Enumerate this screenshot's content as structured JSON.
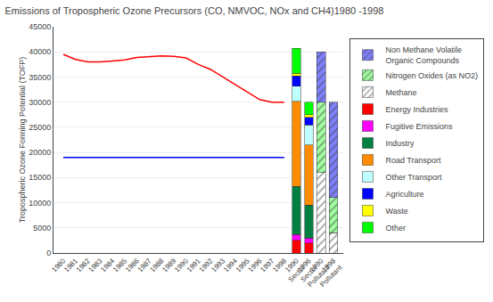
{
  "chart_data": {
    "type": "bar",
    "title": "Emissions of Tropospheric Ozone Precursors (CO, NMVOC, NOx and CH4)1980 -1998",
    "ylabel": "Tropospheric Ozone Forming Potential (TOFP)",
    "categories": [
      "1980",
      "1981",
      "1982",
      "1983",
      "1984",
      "1985",
      "1986",
      "1987",
      "1988",
      "1989",
      "1990",
      "1991",
      "1992",
      "1993",
      "1994",
      "1995",
      "1996",
      "1997",
      "1998",
      "1990\nSector",
      "1996\nSector",
      "1990\nPollutant",
      "1998\nPollutant"
    ],
    "series": [
      {
        "type": "line",
        "color": "red",
        "values": [
          39500,
          38500,
          38000,
          38000,
          38200,
          38400,
          38900,
          39000,
          39200,
          39100,
          38800,
          37500,
          36500,
          35000,
          33500,
          32000,
          30500,
          30000,
          30000,
          null,
          null,
          null,
          null
        ]
      },
      {
        "type": "line",
        "color": "blue",
        "values": [
          19000,
          19000,
          19000,
          19000,
          19000,
          19000,
          19000,
          19000,
          19000,
          19000,
          19000,
          19000,
          19000,
          19000,
          19000,
          19000,
          19000,
          19000,
          19000,
          null,
          null,
          null,
          null
        ]
      },
      {
        "name": "Energy Industries",
        "color": "#ff0000",
        "values": [
          null,
          null,
          null,
          null,
          null,
          null,
          null,
          null,
          null,
          null,
          null,
          null,
          null,
          null,
          null,
          null,
          null,
          null,
          null,
          2500,
          2000,
          null,
          null
        ]
      },
      {
        "name": "Fugitive Emissions",
        "color": "#ff00ff",
        "values": [
          null,
          null,
          null,
          null,
          null,
          null,
          null,
          null,
          null,
          null,
          null,
          null,
          null,
          null,
          null,
          null,
          null,
          null,
          null,
          1200,
          1000,
          null,
          null
        ]
      },
      {
        "name": "Industry",
        "color": "#008040",
        "values": [
          null,
          null,
          null,
          null,
          null,
          null,
          null,
          null,
          null,
          null,
          null,
          null,
          null,
          null,
          null,
          null,
          null,
          null,
          null,
          9500,
          6500,
          null,
          null
        ]
      },
      {
        "name": "Road Transport",
        "color": "#ff8c00",
        "values": [
          null,
          null,
          null,
          null,
          null,
          null,
          null,
          null,
          null,
          null,
          null,
          null,
          null,
          null,
          null,
          null,
          null,
          null,
          null,
          17000,
          12000,
          null,
          null
        ]
      },
      {
        "name": "Other Transport",
        "color": "#c0ffff",
        "values": [
          null,
          null,
          null,
          null,
          null,
          null,
          null,
          null,
          null,
          null,
          null,
          null,
          null,
          null,
          null,
          null,
          null,
          null,
          null,
          3000,
          4000,
          null,
          null
        ]
      },
      {
        "name": "Agriculture",
        "color": "#0000ff",
        "values": [
          null,
          null,
          null,
          null,
          null,
          null,
          null,
          null,
          null,
          null,
          null,
          null,
          null,
          null,
          null,
          null,
          null,
          null,
          null,
          2000,
          1500,
          null,
          null
        ]
      },
      {
        "name": "Waste",
        "color": "#ffff00",
        "values": [
          null,
          null,
          null,
          null,
          null,
          null,
          null,
          null,
          null,
          null,
          null,
          null,
          null,
          null,
          null,
          null,
          null,
          null,
          null,
          500,
          500,
          null,
          null
        ]
      },
      {
        "name": "Other",
        "color": "#00ff00",
        "values": [
          null,
          null,
          null,
          null,
          null,
          null,
          null,
          null,
          null,
          null,
          null,
          null,
          null,
          null,
          null,
          null,
          null,
          null,
          null,
          5000,
          2500,
          null,
          null
        ]
      },
      {
        "name": "Methane",
        "color": "#ffffff",
        "marker": "hatch",
        "values": [
          null,
          null,
          null,
          null,
          null,
          null,
          null,
          null,
          null,
          null,
          null,
          null,
          null,
          null,
          null,
          null,
          null,
          null,
          null,
          null,
          null,
          16000,
          4000
        ]
      },
      {
        "name": "Nitrogen Oxides (as NO2)",
        "color": "#a0ffa0",
        "marker": "hatch",
        "values": [
          null,
          null,
          null,
          null,
          null,
          null,
          null,
          null,
          null,
          null,
          null,
          null,
          null,
          null,
          null,
          null,
          null,
          null,
          null,
          null,
          null,
          14000,
          7000
        ]
      },
      {
        "name": "Non Methane Volatile\nOrganic Compounds",
        "color": "#8080ff",
        "marker": "hatch",
        "values": [
          null,
          null,
          null,
          null,
          null,
          null,
          null,
          null,
          null,
          null,
          null,
          null,
          null,
          null,
          null,
          null,
          null,
          null,
          null,
          null,
          null,
          10000,
          19000
        ]
      }
    ],
    "stacked": true,
    "ylim": [
      0,
      45000
    ],
    "yticks": [
      0,
      5000,
      10000,
      15000,
      20000,
      25000,
      30000,
      35000,
      40000,
      45000
    ],
    "grid": true,
    "legend": "right"
  }
}
